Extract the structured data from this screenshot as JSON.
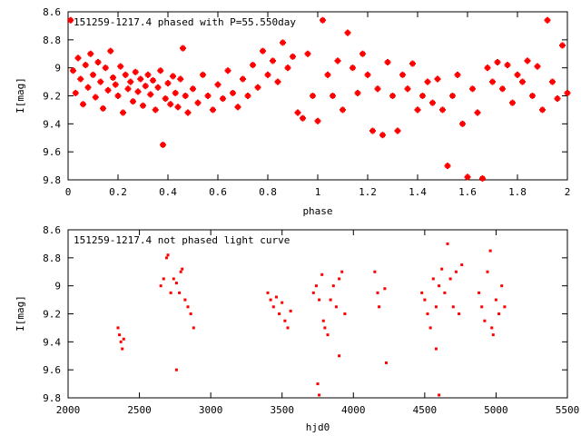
{
  "chart_data": [
    {
      "type": "scatter",
      "title": "151259-1217.4 phased with P=55.550day",
      "xlabel": "phase",
      "ylabel": "I[mag]",
      "xlim": [
        0,
        2
      ],
      "ylim": [
        9.8,
        8.6
      ],
      "y_inverted": true,
      "xticks": [
        "0",
        "0.2",
        "0.4",
        "0.6",
        "0.8",
        "1",
        "1.2",
        "1.4",
        "1.6",
        "1.8",
        "2"
      ],
      "yticks": [
        "8.6",
        "8.8",
        "9",
        "9.2",
        "9.4",
        "9.6",
        "9.8"
      ],
      "marker_color": "#ff0000",
      "legend": "none",
      "grid": false,
      "series": [
        {
          "values_xy": [
            [
              0.01,
              8.66
            ],
            [
              0.02,
              9.02
            ],
            [
              0.03,
              9.18
            ],
            [
              0.04,
              8.93
            ],
            [
              0.05,
              9.08
            ],
            [
              0.06,
              9.26
            ],
            [
              0.07,
              8.98
            ],
            [
              0.08,
              9.14
            ],
            [
              0.09,
              8.9
            ],
            [
              0.1,
              9.05
            ],
            [
              0.11,
              9.21
            ],
            [
              0.12,
              8.96
            ],
            [
              0.13,
              9.1
            ],
            [
              0.14,
              9.29
            ],
            [
              0.15,
              9.0
            ],
            [
              0.16,
              9.16
            ],
            [
              0.17,
              8.88
            ],
            [
              0.18,
              9.07
            ],
            [
              0.19,
              9.12
            ],
            [
              0.2,
              9.2
            ],
            [
              0.21,
              8.99
            ],
            [
              0.22,
              9.32
            ],
            [
              0.23,
              9.05
            ],
            [
              0.24,
              9.15
            ],
            [
              0.25,
              9.1
            ],
            [
              0.26,
              9.24
            ],
            [
              0.27,
              9.03
            ],
            [
              0.28,
              9.17
            ],
            [
              0.29,
              9.08
            ],
            [
              0.3,
              9.27
            ],
            [
              0.31,
              9.13
            ],
            [
              0.32,
              9.05
            ],
            [
              0.33,
              9.19
            ],
            [
              0.34,
              9.09
            ],
            [
              0.35,
              9.3
            ],
            [
              0.36,
              9.14
            ],
            [
              0.37,
              9.02
            ],
            [
              0.38,
              9.55
            ],
            [
              0.39,
              9.22
            ],
            [
              0.4,
              9.11
            ],
            [
              0.41,
              9.26
            ],
            [
              0.42,
              9.06
            ],
            [
              0.43,
              9.18
            ],
            [
              0.44,
              9.28
            ],
            [
              0.45,
              9.08
            ],
            [
              0.46,
              8.86
            ],
            [
              0.47,
              9.2
            ],
            [
              0.48,
              9.32
            ],
            [
              0.5,
              9.15
            ],
            [
              0.52,
              9.25
            ],
            [
              0.54,
              9.05
            ],
            [
              0.56,
              9.2
            ],
            [
              0.58,
              9.3
            ],
            [
              0.6,
              9.12
            ],
            [
              0.62,
              9.22
            ],
            [
              0.64,
              9.02
            ],
            [
              0.66,
              9.18
            ],
            [
              0.68,
              9.28
            ],
            [
              0.7,
              9.08
            ],
            [
              0.72,
              9.2
            ],
            [
              0.74,
              8.98
            ],
            [
              0.76,
              9.14
            ],
            [
              0.78,
              8.88
            ],
            [
              0.8,
              9.05
            ],
            [
              0.82,
              8.95
            ],
            [
              0.84,
              9.1
            ],
            [
              0.86,
              8.82
            ],
            [
              0.88,
              9.0
            ],
            [
              0.9,
              8.92
            ],
            [
              0.92,
              9.32
            ],
            [
              0.94,
              9.36
            ],
            [
              0.96,
              8.9
            ],
            [
              0.98,
              9.2
            ],
            [
              1.0,
              9.38
            ],
            [
              1.02,
              8.66
            ],
            [
              1.04,
              9.05
            ],
            [
              1.06,
              9.2
            ],
            [
              1.08,
              8.95
            ],
            [
              1.1,
              9.3
            ],
            [
              1.12,
              8.75
            ],
            [
              1.14,
              9.0
            ],
            [
              1.16,
              9.18
            ],
            [
              1.18,
              8.9
            ],
            [
              1.2,
              9.05
            ],
            [
              1.22,
              9.45
            ],
            [
              1.24,
              9.15
            ],
            [
              1.26,
              9.48
            ],
            [
              1.28,
              8.96
            ],
            [
              1.3,
              9.2
            ],
            [
              1.32,
              9.45
            ],
            [
              1.34,
              9.05
            ],
            [
              1.36,
              9.15
            ],
            [
              1.38,
              8.97
            ],
            [
              1.4,
              9.3
            ],
            [
              1.42,
              9.2
            ],
            [
              1.44,
              9.1
            ],
            [
              1.46,
              9.25
            ],
            [
              1.48,
              9.08
            ],
            [
              1.5,
              9.3
            ],
            [
              1.52,
              9.7
            ],
            [
              1.54,
              9.2
            ],
            [
              1.56,
              9.05
            ],
            [
              1.58,
              9.4
            ],
            [
              1.6,
              9.78
            ],
            [
              1.62,
              9.15
            ],
            [
              1.64,
              9.32
            ],
            [
              1.66,
              9.79
            ],
            [
              1.68,
              9.0
            ],
            [
              1.7,
              9.1
            ],
            [
              1.72,
              8.96
            ],
            [
              1.74,
              9.15
            ],
            [
              1.76,
              8.98
            ],
            [
              1.78,
              9.25
            ],
            [
              1.8,
              9.05
            ],
            [
              1.82,
              9.1
            ],
            [
              1.84,
              8.95
            ],
            [
              1.86,
              9.2
            ],
            [
              1.88,
              8.99
            ],
            [
              1.9,
              9.3
            ],
            [
              1.92,
              8.66
            ],
            [
              1.94,
              9.1
            ],
            [
              1.96,
              9.22
            ],
            [
              1.98,
              8.84
            ],
            [
              2.0,
              9.18
            ]
          ]
        }
      ]
    },
    {
      "type": "scatter",
      "title": "151259-1217.4 not phased light curve",
      "xlabel": "hjd0",
      "ylabel": "I[mag]",
      "xlim": [
        2000,
        5500
      ],
      "ylim": [
        9.8,
        8.6
      ],
      "y_inverted": true,
      "xticks": [
        "2000",
        "2500",
        "3000",
        "3500",
        "4000",
        "4500",
        "5000",
        "5500"
      ],
      "yticks": [
        "8.6",
        "8.8",
        "9",
        "9.2",
        "9.4",
        "9.6",
        "9.8"
      ],
      "marker_color": "#ff0000",
      "legend": "none",
      "grid": false,
      "series": [
        {
          "values_xy": [
            [
              2350,
              9.3
            ],
            [
              2360,
              9.35
            ],
            [
              2370,
              9.4
            ],
            [
              2380,
              9.45
            ],
            [
              2390,
              9.38
            ],
            [
              2650,
              9.0
            ],
            [
              2670,
              8.95
            ],
            [
              2690,
              8.8
            ],
            [
              2700,
              8.78
            ],
            [
              2720,
              9.05
            ],
            [
              2740,
              8.95
            ],
            [
              2760,
              8.98
            ],
            [
              2780,
              9.05
            ],
            [
              2790,
              8.9
            ],
            [
              2800,
              8.88
            ],
            [
              2820,
              9.1
            ],
            [
              2840,
              9.15
            ],
            [
              2860,
              9.2
            ],
            [
              2880,
              9.3
            ],
            [
              2760,
              9.6
            ],
            [
              3400,
              9.05
            ],
            [
              3420,
              9.1
            ],
            [
              3440,
              9.15
            ],
            [
              3460,
              9.08
            ],
            [
              3480,
              9.2
            ],
            [
              3500,
              9.12
            ],
            [
              3520,
              9.25
            ],
            [
              3540,
              9.3
            ],
            [
              3560,
              9.18
            ],
            [
              3720,
              9.05
            ],
            [
              3740,
              9.0
            ],
            [
              3760,
              9.1
            ],
            [
              3780,
              8.92
            ],
            [
              3790,
              9.25
            ],
            [
              3800,
              9.3
            ],
            [
              3820,
              9.35
            ],
            [
              3840,
              9.1
            ],
            [
              3860,
              9.0
            ],
            [
              3880,
              9.15
            ],
            [
              3900,
              8.95
            ],
            [
              3920,
              8.9
            ],
            [
              3940,
              9.2
            ],
            [
              3750,
              9.7
            ],
            [
              3760,
              9.78
            ],
            [
              3900,
              9.5
            ],
            [
              4150,
              8.9
            ],
            [
              4170,
              9.05
            ],
            [
              4180,
              9.15
            ],
            [
              4220,
              9.02
            ],
            [
              4230,
              9.55
            ],
            [
              4480,
              9.05
            ],
            [
              4500,
              9.1
            ],
            [
              4520,
              9.2
            ],
            [
              4540,
              9.3
            ],
            [
              4560,
              8.95
            ],
            [
              4580,
              9.15
            ],
            [
              4600,
              9.0
            ],
            [
              4620,
              8.88
            ],
            [
              4640,
              9.05
            ],
            [
              4660,
              8.7
            ],
            [
              4680,
              8.95
            ],
            [
              4700,
              9.15
            ],
            [
              4720,
              8.9
            ],
            [
              4740,
              9.2
            ],
            [
              4760,
              8.85
            ],
            [
              4580,
              9.45
            ],
            [
              4600,
              9.78
            ],
            [
              4880,
              9.05
            ],
            [
              4900,
              9.15
            ],
            [
              4920,
              9.25
            ],
            [
              4940,
              8.9
            ],
            [
              4960,
              8.75
            ],
            [
              4970,
              9.3
            ],
            [
              4980,
              9.35
            ],
            [
              5000,
              9.1
            ],
            [
              5020,
              9.2
            ],
            [
              5040,
              9.0
            ],
            [
              5060,
              9.15
            ]
          ]
        }
      ]
    }
  ]
}
